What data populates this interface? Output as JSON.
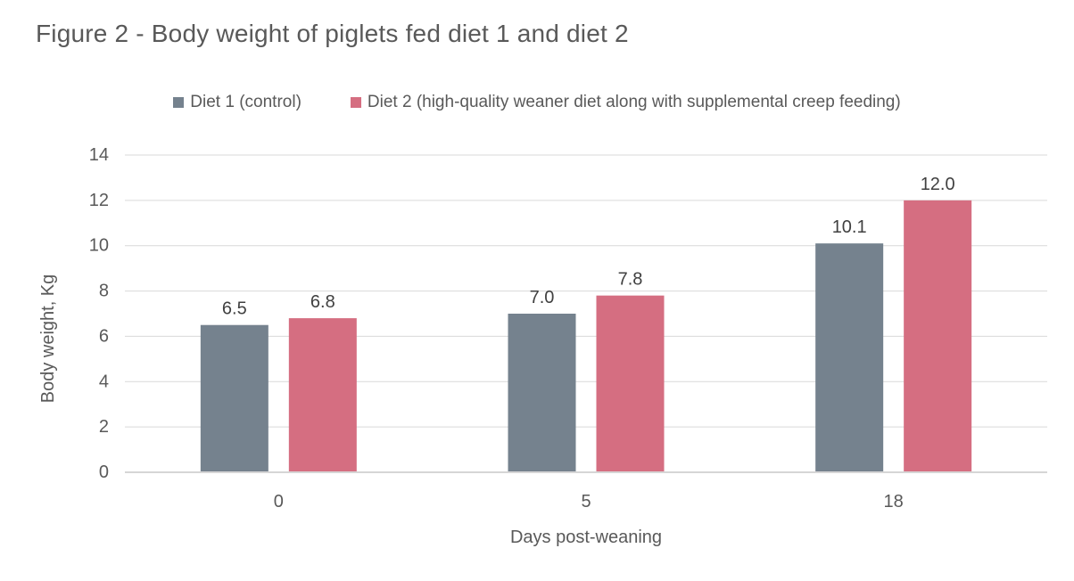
{
  "title": "Figure 2 - Body weight of piglets fed diet 1 and diet 2",
  "legend": [
    {
      "label": "Diet 1 (control)",
      "color": "#75828E"
    },
    {
      "label": "Diet 2 (high-quality weaner diet along with supplemental creep feeding)",
      "color": "#D56E81"
    }
  ],
  "chart_data": {
    "type": "bar",
    "title": "Figure 2 - Body weight of piglets fed diet 1 and diet 2",
    "categories": [
      "0",
      "5",
      "18"
    ],
    "series": [
      {
        "name": "Diet 1 (control)",
        "color": "#75828E",
        "values": [
          6.5,
          7.0,
          10.1
        ]
      },
      {
        "name": "Diet 2 (high-quality weaner diet along with supplemental creep feeding)",
        "color": "#D56E81",
        "values": [
          6.8,
          7.8,
          12.0
        ]
      }
    ],
    "xlabel": "Days post-weaning",
    "ylabel": "Body weight, Kg",
    "ylim": [
      0,
      14
    ],
    "ytick_step": 2,
    "grid": true,
    "legend_position": "top",
    "data_labels": true,
    "data_label_decimals": 1
  },
  "colors": {
    "title_text": "#595959",
    "axis_text": "#595959",
    "data_label_text": "#404040",
    "gridline": "#D9D9D9",
    "axis_line": "#D6D6D6"
  }
}
